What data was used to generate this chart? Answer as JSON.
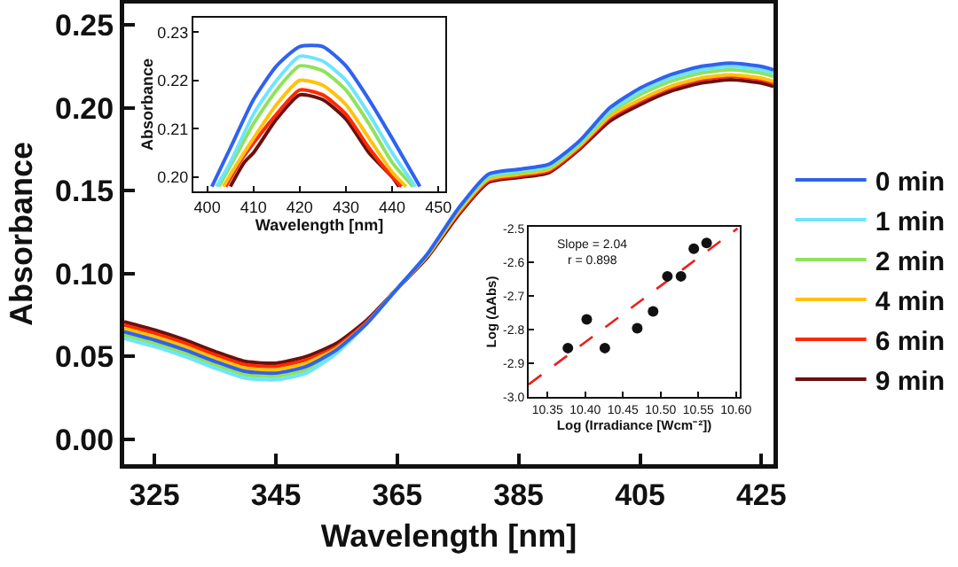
{
  "chart_data": [
    {
      "type": "line",
      "xlabel": "Wavelength [nm]",
      "ylabel": "Absorbance",
      "legend": "right",
      "x": [
        320,
        325,
        330,
        335,
        340,
        345,
        350,
        355,
        360,
        365,
        370,
        375,
        380,
        385,
        390,
        395,
        400,
        405,
        410,
        415,
        420,
        425,
        427
      ],
      "xlim": [
        320,
        427
      ],
      "ylim": [
        -0.015,
        0.263
      ],
      "xticks": [
        325,
        345,
        365,
        385,
        405,
        425
      ],
      "yticks": [
        {
          "value": 0,
          "label": "0.00"
        },
        0.05,
        {
          "value": 0.1,
          "label": "0.10"
        },
        0.15,
        {
          "value": 0.2,
          "label": "0.20"
        },
        0.25
      ],
      "series": [
        {
          "name": "0 min",
          "color": "#2f62f0",
          "values": [
            0.065,
            0.06,
            0.054,
            0.047,
            0.041,
            0.04,
            0.044,
            0.054,
            0.07,
            0.091,
            0.112,
            0.139,
            0.16,
            0.163,
            0.166,
            0.18,
            0.2,
            0.212,
            0.22,
            0.225,
            0.227,
            0.225,
            0.223
          ]
        },
        {
          "name": "1 min",
          "color": "#6fe4ff",
          "values": [
            0.061,
            0.056,
            0.05,
            0.043,
            0.037,
            0.036,
            0.04,
            0.052,
            0.07,
            0.091,
            0.112,
            0.139,
            0.159,
            0.162,
            0.165,
            0.179,
            0.198,
            0.21,
            0.218,
            0.223,
            0.225,
            0.223,
            0.221
          ]
        },
        {
          "name": "2 min",
          "color": "#8fe35a",
          "values": [
            0.063,
            0.058,
            0.052,
            0.045,
            0.039,
            0.038,
            0.042,
            0.053,
            0.07,
            0.091,
            0.112,
            0.138,
            0.158,
            0.161,
            0.164,
            0.178,
            0.197,
            0.208,
            0.216,
            0.221,
            0.223,
            0.221,
            0.219
          ]
        },
        {
          "name": "4 min",
          "color": "#ffc20e",
          "values": [
            0.067,
            0.062,
            0.056,
            0.049,
            0.043,
            0.042,
            0.046,
            0.055,
            0.07,
            0.091,
            0.111,
            0.137,
            0.157,
            0.16,
            0.163,
            0.177,
            0.195,
            0.205,
            0.213,
            0.218,
            0.22,
            0.218,
            0.216
          ]
        },
        {
          "name": "6 min",
          "color": "#ff2a00",
          "values": [
            0.069,
            0.064,
            0.058,
            0.051,
            0.045,
            0.044,
            0.048,
            0.056,
            0.071,
            0.091,
            0.111,
            0.136,
            0.156,
            0.159,
            0.162,
            0.176,
            0.194,
            0.204,
            0.212,
            0.217,
            0.219,
            0.217,
            0.215
          ]
        },
        {
          "name": "9 min",
          "color": "#6b1010",
          "values": [
            0.071,
            0.066,
            0.06,
            0.053,
            0.047,
            0.046,
            0.05,
            0.058,
            0.072,
            0.091,
            0.11,
            0.135,
            0.155,
            0.158,
            0.161,
            0.175,
            0.192,
            0.202,
            0.21,
            0.215,
            0.217,
            0.215,
            0.213
          ]
        }
      ]
    },
    {
      "type": "line",
      "xlabel": "Wavelength [nm]",
      "ylabel": "Absorbance",
      "xlim": [
        397,
        451.5
      ],
      "ylim": [
        0.197,
        0.233
      ],
      "xticks": [
        400,
        410,
        420,
        430,
        440,
        450
      ],
      "yticks": [
        {
          "value": 0.2,
          "label": "0.20"
        },
        0.21,
        0.22,
        0.23
      ],
      "series": [
        {
          "color": "#2f62f0",
          "x": [
            401,
            405,
            410,
            415,
            420,
            425,
            430,
            435,
            440,
            446
          ],
          "values": [
            0.198,
            0.206,
            0.216,
            0.223,
            0.227,
            0.227,
            0.223,
            0.216,
            0.208,
            0.198
          ]
        },
        {
          "color": "#6fe4ff",
          "x": [
            402,
            405,
            410,
            415,
            420,
            425,
            430,
            435,
            440,
            445
          ],
          "values": [
            0.198,
            0.203,
            0.213,
            0.22,
            0.225,
            0.224,
            0.22,
            0.213,
            0.205,
            0.198
          ]
        },
        {
          "color": "#8fe35a",
          "x": [
            402.5,
            406,
            410,
            415,
            420,
            425,
            430,
            435,
            440,
            444.5
          ],
          "values": [
            0.198,
            0.204,
            0.211,
            0.218,
            0.223,
            0.222,
            0.218,
            0.211,
            0.203,
            0.198
          ]
        },
        {
          "color": "#ffc20e",
          "x": [
            403.5,
            406,
            410,
            415,
            420,
            425,
            430,
            435,
            440,
            443
          ],
          "values": [
            0.198,
            0.202,
            0.208,
            0.215,
            0.22,
            0.219,
            0.215,
            0.208,
            0.201,
            0.198
          ]
        },
        {
          "color": "#ff2a00",
          "x": [
            404,
            407,
            410,
            415,
            420,
            425,
            430,
            435,
            440,
            442
          ],
          "values": [
            0.198,
            0.203,
            0.207,
            0.213,
            0.218,
            0.217,
            0.213,
            0.206,
            0.2,
            0.198
          ]
        },
        {
          "color": "#6b1010",
          "x": [
            405,
            408,
            410,
            415,
            420,
            425,
            430,
            435,
            440,
            441.5
          ],
          "values": [
            0.198,
            0.203,
            0.205,
            0.212,
            0.217,
            0.216,
            0.212,
            0.205,
            0.2,
            0.198
          ]
        }
      ]
    },
    {
      "type": "scatter",
      "xlabel": "Log (Irradiance [Wcm⁻²])",
      "ylabel": "Log (ΔAbs)",
      "xlim": [
        10.325,
        10.605
      ],
      "ylim": [
        -3.0,
        -2.495
      ],
      "xticks": [
        10.35,
        {
          "value": 10.4,
          "label": "10.40"
        },
        10.45,
        {
          "value": 10.5,
          "label": "10.50"
        },
        10.55,
        {
          "value": 10.6,
          "label": "10.60"
        }
      ],
      "yticks": [
        -2.5,
        -2.6,
        -2.7,
        -2.8,
        -2.9,
        {
          "value": -3.0,
          "label": "-3.0"
        }
      ],
      "annotations": [
        "Slope = 2.04",
        "r = 0.898"
      ],
      "series": [
        {
          "color": "#111111",
          "marker": "circle",
          "x": [
            10.377,
            10.402,
            10.426,
            10.469,
            10.49,
            10.509,
            10.527,
            10.544,
            10.561
          ],
          "values": [
            -2.855,
            -2.77,
            -2.855,
            -2.796,
            -2.746,
            -2.642,
            -2.642,
            -2.56,
            -2.543
          ]
        },
        {
          "type": "line",
          "color": "#e8201c",
          "line_style": "dashed",
          "x": [
            10.325,
            10.602
          ],
          "values": [
            -2.963,
            -2.5
          ]
        }
      ]
    }
  ]
}
